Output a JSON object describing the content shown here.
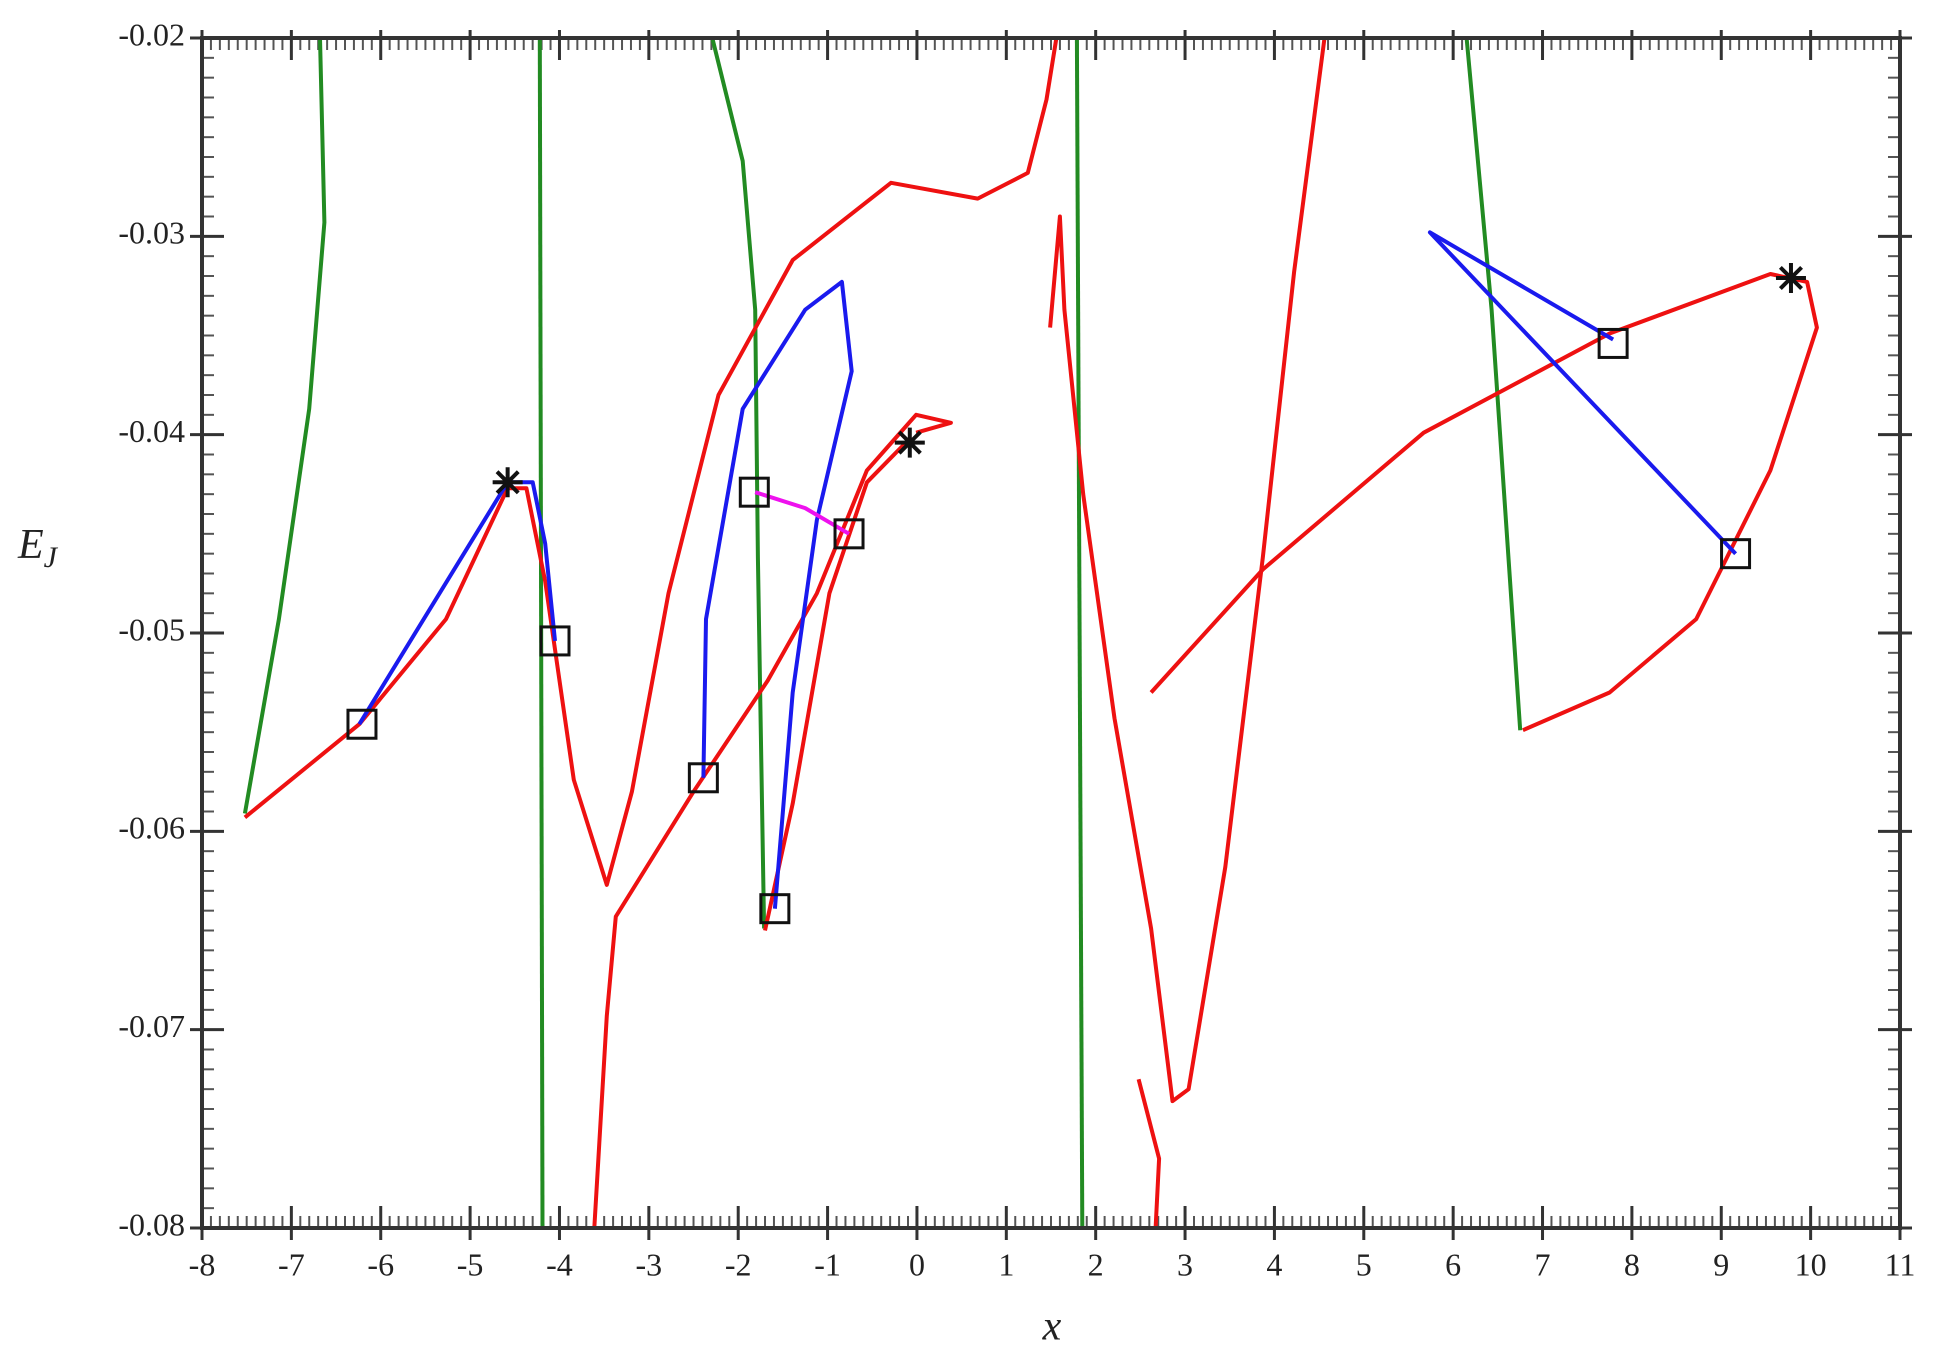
{
  "chart_data": {
    "type": "line",
    "xlabel": "x",
    "ylabel": "E_J",
    "xlim": [
      -8,
      11
    ],
    "xticks": [
      -8,
      -7,
      -6,
      -5,
      -4,
      -3,
      -2,
      -1,
      0,
      1,
      2,
      3,
      4,
      5,
      6,
      7,
      8,
      9,
      10,
      11
    ],
    "ylim": [
      -0.08,
      -0.02
    ],
    "yticks": [
      -0.08,
      -0.07,
      -0.06,
      -0.05,
      -0.04,
      -0.03,
      -0.02
    ],
    "series": [
      {
        "color": "#228b22",
        "x": [
          -6.68,
          -6.63,
          -6.8,
          -7.14,
          -7.52
        ],
        "y": [
          -0.02,
          -0.0293,
          -0.0387,
          -0.0493,
          -0.0591
        ]
      },
      {
        "color": "#228b22",
        "x": [
          -4.22,
          -4.19
        ],
        "y": [
          -0.02,
          -0.08
        ]
      },
      {
        "color": "#228b22",
        "x": [
          -2.29,
          -1.95,
          -1.81,
          -1.78,
          -1.71
        ],
        "y": [
          -0.02,
          -0.0262,
          -0.0337,
          -0.0462,
          -0.0649
        ]
      },
      {
        "color": "#228b22",
        "x": [
          1.79,
          1.85
        ],
        "y": [
          -0.02,
          -0.08
        ]
      },
      {
        "color": "#228b22",
        "x": [
          6.15,
          6.43,
          6.75
        ],
        "y": [
          -0.02,
          -0.0337,
          -0.0549
        ]
      },
      {
        "color": "#ee1111",
        "x": [
          -7.52,
          -6.24,
          -5.27,
          -4.58,
          -4.37,
          -4.16,
          -3.84,
          -3.47,
          -3.19,
          -2.78,
          -2.22,
          -1.39,
          -0.29,
          0.68,
          1.24,
          1.45,
          1.56
        ],
        "y": [
          -0.0593,
          -0.0546,
          -0.0493,
          -0.0427,
          -0.0427,
          -0.0474,
          -0.0574,
          -0.0627,
          -0.058,
          -0.048,
          -0.038,
          -0.0312,
          -0.0273,
          -0.0281,
          -0.0268,
          -0.0231,
          -0.02
        ]
      },
      {
        "color": "#ee1111",
        "x": [
          -3.61,
          -3.47,
          -3.37,
          -2.5,
          -1.67,
          -1.12,
          -0.56,
          -0.01,
          0.38,
          -0.01
        ],
        "y": [
          -0.08,
          -0.0693,
          -0.0643,
          -0.058,
          -0.0524,
          -0.048,
          -0.0418,
          -0.039,
          -0.0394,
          -0.0399
        ]
      },
      {
        "color": "#ee1111",
        "x": [
          -1.7,
          -1.39,
          -0.98,
          -0.56,
          -0.08
        ],
        "y": [
          -0.065,
          -0.0586,
          -0.048,
          -0.0424,
          -0.0402
        ]
      },
      {
        "color": "#ee1111",
        "x": [
          1.49,
          1.6,
          1.65,
          1.86,
          2.21,
          2.62,
          2.86,
          3.04,
          3.45,
          3.87,
          4.22,
          4.56
        ],
        "y": [
          -0.0346,
          -0.029,
          -0.0337,
          -0.043,
          -0.0543,
          -0.0649,
          -0.0736,
          -0.073,
          -0.0618,
          -0.0462,
          -0.0318,
          -0.02
        ]
      },
      {
        "color": "#ee1111",
        "x": [
          2.48,
          2.71,
          2.67
        ],
        "y": [
          -0.0725,
          -0.0765,
          -0.08
        ]
      },
      {
        "color": "#ee1111",
        "x": [
          6.78,
          7.75,
          8.72,
          9.55,
          10.07,
          9.96,
          9.55,
          7.75,
          5.67,
          3.87,
          2.62
        ],
        "y": [
          -0.0549,
          -0.053,
          -0.0493,
          -0.0418,
          -0.0346,
          -0.0323,
          -0.0319,
          -0.0349,
          -0.0399,
          -0.0468,
          -0.053
        ]
      },
      {
        "color": "#1a1aee",
        "x": [
          -6.24,
          -4.58,
          -4.3,
          -4.16,
          -4.05
        ],
        "y": [
          -0.0546,
          -0.0424,
          -0.0424,
          -0.0455,
          -0.0504
        ]
      },
      {
        "color": "#1a1aee",
        "x": [
          -2.39,
          -2.36,
          -1.95,
          -1.25,
          -0.84,
          -0.73,
          -1.12,
          -1.39,
          -1.59
        ],
        "y": [
          -0.0573,
          -0.0493,
          -0.0387,
          -0.0337,
          -0.0323,
          -0.0368,
          -0.0443,
          -0.053,
          -0.0639
        ]
      },
      {
        "color": "#1a1aee",
        "x": [
          7.79,
          5.74,
          9.16
        ],
        "y": [
          -0.0352,
          -0.0298,
          -0.046
        ]
      },
      {
        "color": "#ee11ee",
        "x": [
          -1.81,
          -1.25,
          -0.76
        ],
        "y": [
          -0.0429,
          -0.0437,
          -0.045
        ]
      }
    ],
    "markers": [
      {
        "symbol": "square",
        "color": "#111111",
        "x": [
          -6.21,
          -4.05,
          -2.39,
          -1.82,
          -1.59,
          -0.76,
          7.79,
          9.16
        ],
        "y": [
          -0.0546,
          -0.0504,
          -0.0573,
          -0.0429,
          -0.0639,
          -0.045,
          -0.0354,
          -0.046
        ]
      },
      {
        "symbol": "asterisk",
        "color": "#111111",
        "x": [
          -4.58,
          -0.08,
          9.78
        ],
        "y": [
          -0.0424,
          -0.0404,
          -0.0321
        ]
      }
    ]
  }
}
